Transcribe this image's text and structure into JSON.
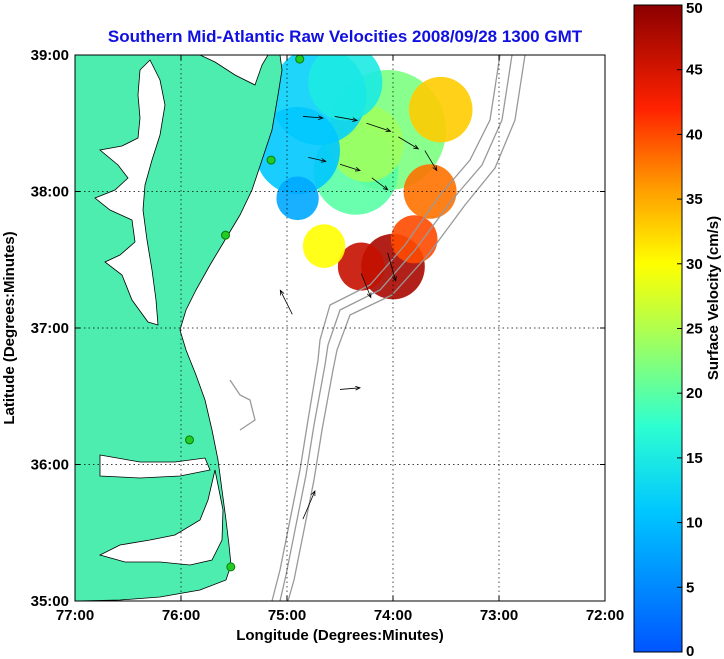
{
  "chart_data": {
    "type": "heatmap",
    "title": "Southern Mid-Atlantic Raw Velocities 2008/09/28 1300 GMT",
    "xlabel": "Longitude (Degrees:Minutes)",
    "ylabel": "Latitude (Degrees:Minutes)",
    "colorbar_label": "Surface Velocity (cm/s)",
    "x_ticks": [
      {
        "value": -77,
        "label": "77:00"
      },
      {
        "value": -76,
        "label": "76:00"
      },
      {
        "value": -75,
        "label": "75:00"
      },
      {
        "value": -74,
        "label": "74:00"
      },
      {
        "value": -73,
        "label": "73:00"
      },
      {
        "value": -72,
        "label": "72:00"
      }
    ],
    "y_ticks": [
      {
        "value": 35,
        "label": "35:00"
      },
      {
        "value": 36,
        "label": "36:00"
      },
      {
        "value": 37,
        "label": "37:00"
      },
      {
        "value": 38,
        "label": "38:00"
      },
      {
        "value": 39,
        "label": "39:00"
      }
    ],
    "colorbar_ticks": [
      {
        "value": 0,
        "label": "0"
      },
      {
        "value": 5,
        "label": "5"
      },
      {
        "value": 10,
        "label": "10"
      },
      {
        "value": 15,
        "label": "15"
      },
      {
        "value": 20,
        "label": "20"
      },
      {
        "value": 25,
        "label": "25"
      },
      {
        "value": 30,
        "label": "30"
      },
      {
        "value": 35,
        "label": "35"
      },
      {
        "value": 40,
        "label": "40"
      },
      {
        "value": 45,
        "label": "45"
      },
      {
        "value": 50,
        "label": "50"
      }
    ],
    "xlim": [
      -77,
      -72
    ],
    "ylim": [
      35,
      39
    ],
    "clim": [
      0,
      50
    ],
    "grid": true,
    "colormap": "jet",
    "land_color": "#4dedb0",
    "bathymetry_color": "#999999",
    "arrow_color": "#000000",
    "station_color": "#22cc22",
    "stations": [
      {
        "lon": -74.88,
        "lat": 38.97
      },
      {
        "lon": -75.15,
        "lat": 38.23
      },
      {
        "lon": -75.58,
        "lat": 37.68
      },
      {
        "lon": -75.92,
        "lat": 36.18
      },
      {
        "lon": -75.53,
        "lat": 35.25
      }
    ],
    "speed_blobs": [
      {
        "lon": -74.05,
        "lat": 38.45,
        "speed": 22,
        "r": 0.55
      },
      {
        "lon": -74.35,
        "lat": 38.15,
        "speed": 20,
        "r": 0.4
      },
      {
        "lon": -74.25,
        "lat": 38.35,
        "speed": 24,
        "r": 0.35
      },
      {
        "lon": -73.65,
        "lat": 38.0,
        "speed": 38,
        "r": 0.25
      },
      {
        "lon": -73.55,
        "lat": 38.6,
        "speed": 33,
        "r": 0.3
      },
      {
        "lon": -74.7,
        "lat": 38.7,
        "speed": 12,
        "r": 0.45
      },
      {
        "lon": -74.9,
        "lat": 38.3,
        "speed": 11,
        "r": 0.4
      },
      {
        "lon": -74.45,
        "lat": 38.8,
        "speed": 15,
        "r": 0.35
      },
      {
        "lon": -74.0,
        "lat": 37.45,
        "speed": 48,
        "r": 0.3
      },
      {
        "lon": -74.3,
        "lat": 37.45,
        "speed": 46,
        "r": 0.22
      },
      {
        "lon": -73.8,
        "lat": 37.65,
        "speed": 40,
        "r": 0.22
      },
      {
        "lon": -74.65,
        "lat": 37.6,
        "speed": 30,
        "r": 0.2
      },
      {
        "lon": -74.9,
        "lat": 37.95,
        "speed": 8,
        "r": 0.2
      }
    ],
    "arrows": [
      {
        "lon": -74.85,
        "lat": 38.55,
        "u": 25,
        "v": -2
      },
      {
        "lon": -74.55,
        "lat": 38.55,
        "u": 28,
        "v": -5
      },
      {
        "lon": -74.25,
        "lat": 38.5,
        "u": 30,
        "v": -10
      },
      {
        "lon": -73.95,
        "lat": 38.4,
        "u": 25,
        "v": -15
      },
      {
        "lon": -73.7,
        "lat": 38.3,
        "u": 15,
        "v": -25
      },
      {
        "lon": -74.8,
        "lat": 38.25,
        "u": 22,
        "v": -5
      },
      {
        "lon": -74.5,
        "lat": 38.2,
        "u": 25,
        "v": -8
      },
      {
        "lon": -74.2,
        "lat": 38.1,
        "u": 20,
        "v": -15
      },
      {
        "lon": -74.05,
        "lat": 37.55,
        "u": 10,
        "v": -35
      },
      {
        "lon": -74.3,
        "lat": 37.4,
        "u": 12,
        "v": -30
      },
      {
        "lon": -74.95,
        "lat": 37.1,
        "u": -15,
        "v": 30
      },
      {
        "lon": -74.85,
        "lat": 35.6,
        "u": 15,
        "v": 35
      },
      {
        "lon": -74.5,
        "lat": 36.55,
        "u": 25,
        "v": 2
      }
    ]
  }
}
